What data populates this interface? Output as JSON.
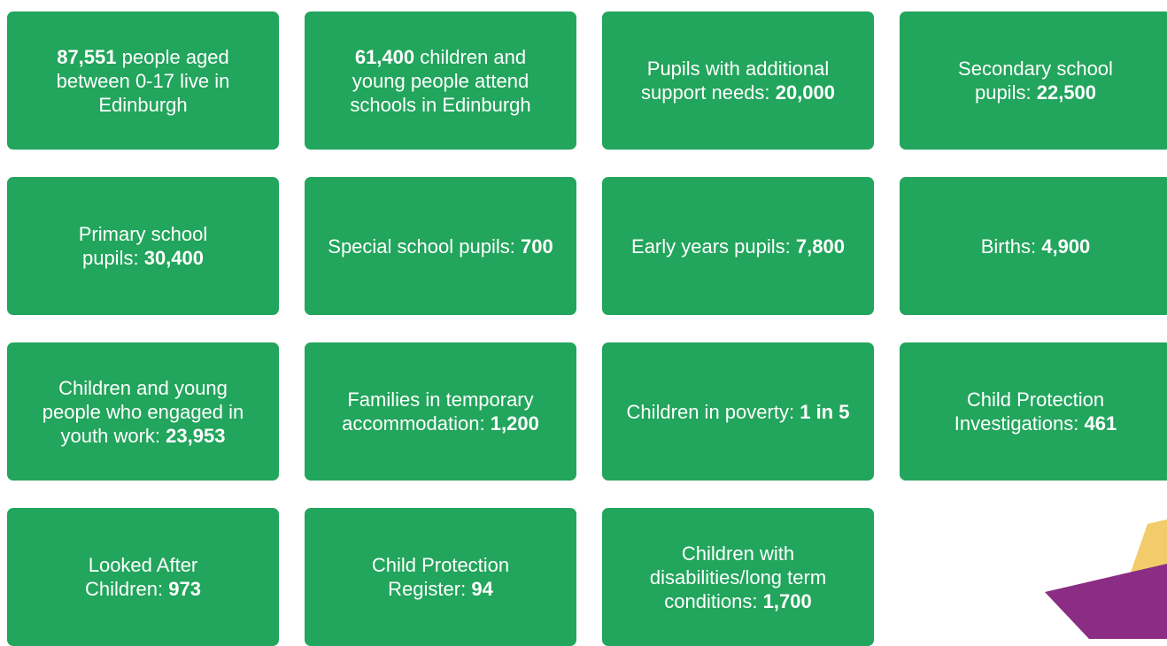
{
  "cards": [
    {
      "parts": [
        {
          "text": "87,551",
          "bold": true
        },
        {
          "text": "people aged between 0-17 live in Edinburgh",
          "bold": false
        }
      ]
    },
    {
      "parts": [
        {
          "text": "61,400",
          "bold": true
        },
        {
          "text": "children and young people attend schools in Edinburgh",
          "bold": false
        }
      ]
    },
    {
      "parts": [
        {
          "text": "Pupils with additional support needs:",
          "bold": false
        },
        {
          "text": "20,000",
          "bold": true
        }
      ]
    },
    {
      "parts": [
        {
          "text": "Secondary school pupils:",
          "bold": false
        },
        {
          "text": "22,500",
          "bold": true
        }
      ]
    },
    {
      "parts": [
        {
          "text": "Primary school pupils:",
          "bold": false
        },
        {
          "text": "30,400",
          "bold": true
        }
      ]
    },
    {
      "parts": [
        {
          "text": "Special school pupils:",
          "bold": false
        },
        {
          "text": "700",
          "bold": true
        }
      ]
    },
    {
      "parts": [
        {
          "text": "Early years pupils:",
          "bold": false
        },
        {
          "text": "7,800",
          "bold": true
        }
      ]
    },
    {
      "parts": [
        {
          "text": "Births:",
          "bold": false
        },
        {
          "text": "4,900",
          "bold": true
        }
      ]
    },
    {
      "parts": [
        {
          "text": "Children and young people who engaged in youth work:",
          "bold": false
        },
        {
          "text": "23,953",
          "bold": true
        }
      ]
    },
    {
      "parts": [
        {
          "text": "Families in temporary accommodation:",
          "bold": false
        },
        {
          "text": "1,200",
          "bold": true
        }
      ]
    },
    {
      "parts": [
        {
          "text": "Children in poverty:",
          "bold": false
        },
        {
          "text": "1 in 5",
          "bold": true
        }
      ]
    },
    {
      "parts": [
        {
          "text": "Child Protection Investigations:",
          "bold": false
        },
        {
          "text": "461",
          "bold": true
        }
      ]
    },
    {
      "parts": [
        {
          "text": "Looked After Children:",
          "bold": false
        },
        {
          "text": "973",
          "bold": true
        }
      ]
    },
    {
      "parts": [
        {
          "text": "Child Protection Register:",
          "bold": false
        },
        {
          "text": "94",
          "bold": true
        }
      ]
    },
    {
      "parts": [
        {
          "text": "Children with disabilities/long term conditions:",
          "bold": false
        },
        {
          "text": "1,700",
          "bold": true
        }
      ]
    }
  ]
}
